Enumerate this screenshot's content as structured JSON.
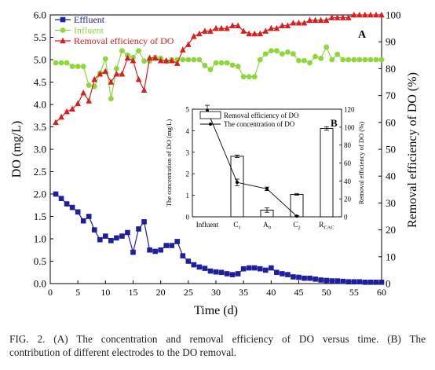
{
  "chart_data": [
    {
      "id": "A",
      "panel_label": "A",
      "type": "line",
      "xlabel": "Time (d)",
      "ylabel_left": "DO (mg/L)",
      "ylabel_right": "Removal efficiency of DO (%)",
      "xlim": [
        0,
        60
      ],
      "ylim_left": [
        0,
        6.0
      ],
      "ylim_right": [
        0,
        100
      ],
      "x_ticks": [
        0,
        5,
        10,
        15,
        20,
        25,
        30,
        35,
        40,
        45,
        50,
        55,
        60
      ],
      "y_ticks_left": [
        "0.0",
        "0.5",
        "1.0",
        "1.5",
        "2.0",
        "2.5",
        "3.0",
        "3.5",
        "4.0",
        "4.5",
        "5.0",
        "5.5",
        "6.0"
      ],
      "y_ticks_right": [
        0,
        10,
        20,
        30,
        40,
        50,
        60,
        70,
        80,
        90,
        100
      ],
      "legend_position": "top-left",
      "series": [
        {
          "name": "Effluent",
          "axis": "left",
          "marker": "square",
          "color": "#1f1f9e",
          "x": [
            1,
            2,
            3,
            4,
            5,
            6,
            7,
            8,
            9,
            10,
            11,
            12,
            13,
            14,
            15,
            16,
            17,
            18,
            19,
            20,
            21,
            22,
            23,
            24,
            25,
            26,
            27,
            28,
            29,
            30,
            31,
            32,
            33,
            34,
            35,
            36,
            37,
            38,
            39,
            40,
            41,
            42,
            43,
            44,
            45,
            46,
            47,
            48,
            49,
            50,
            51,
            52,
            53,
            54,
            55,
            56,
            57,
            58,
            59,
            60
          ],
          "y": [
            2.0,
            1.9,
            1.78,
            1.7,
            1.6,
            1.4,
            1.5,
            1.2,
            0.98,
            1.06,
            0.96,
            1.02,
            1.06,
            1.14,
            0.7,
            1.22,
            1.38,
            0.75,
            0.72,
            0.75,
            0.85,
            0.85,
            0.94,
            0.62,
            0.5,
            0.42,
            0.37,
            0.34,
            0.28,
            0.26,
            0.25,
            0.22,
            0.2,
            0.22,
            0.33,
            0.35,
            0.35,
            0.33,
            0.3,
            0.35,
            0.25,
            0.22,
            0.2,
            0.15,
            0.14,
            0.12,
            0.12,
            0.1,
            0.08,
            0.07,
            0.06,
            0.06,
            0.05,
            0.04,
            0.04,
            0.04,
            0.03,
            0.03,
            0.03,
            0.03
          ]
        },
        {
          "name": "Influent",
          "axis": "left",
          "marker": "circle",
          "color": "#8ed63a",
          "x": [
            1,
            2,
            3,
            4,
            5,
            6,
            7,
            8,
            9,
            10,
            11,
            12,
            13,
            14,
            15,
            16,
            17,
            18,
            19,
            20,
            21,
            22,
            23,
            24,
            25,
            26,
            27,
            28,
            29,
            30,
            31,
            32,
            33,
            34,
            35,
            36,
            37,
            38,
            39,
            40,
            41,
            42,
            43,
            44,
            45,
            46,
            47,
            48,
            49,
            50,
            51,
            52,
            53,
            54,
            55,
            56,
            57,
            58,
            59,
            60
          ],
          "y": [
            4.93,
            4.93,
            4.93,
            4.85,
            4.85,
            4.85,
            4.43,
            4.4,
            4.7,
            5.02,
            4.13,
            4.8,
            5.2,
            5.1,
            5.05,
            5.2,
            4.97,
            4.97,
            5.05,
            5.03,
            4.96,
            5.0,
            5.0,
            5.0,
            5.0,
            5.0,
            5.0,
            4.87,
            4.78,
            4.93,
            4.93,
            4.93,
            4.88,
            4.85,
            4.62,
            4.62,
            4.62,
            5.0,
            5.13,
            5.2,
            5.2,
            5.13,
            5.17,
            5.13,
            4.98,
            4.98,
            4.93,
            5.07,
            5.03,
            5.28,
            5.0,
            5.12,
            5.0,
            5.0,
            5.0,
            5.0,
            5.0,
            5.0,
            5.0,
            5.0
          ]
        },
        {
          "name": "Removal efficiency of DO",
          "axis": "right",
          "marker": "triangle",
          "color": "#d62020",
          "x": [
            1,
            2,
            3,
            4,
            5,
            6,
            7,
            8,
            9,
            10,
            11,
            12,
            13,
            14,
            15,
            16,
            17,
            18,
            19,
            20,
            21,
            22,
            23,
            24,
            25,
            26,
            27,
            28,
            29,
            30,
            31,
            32,
            33,
            34,
            35,
            36,
            37,
            38,
            39,
            40,
            41,
            42,
            43,
            44,
            45,
            46,
            47,
            48,
            49,
            50,
            51,
            52,
            53,
            54,
            55,
            56,
            57,
            58,
            59,
            60
          ],
          "y": [
            60,
            62,
            64,
            65,
            67,
            71,
            68,
            76,
            78,
            79,
            75,
            78,
            78,
            84,
            83,
            76,
            72,
            84,
            84,
            83,
            83,
            83,
            82,
            87,
            89,
            92,
            93,
            94,
            94,
            95,
            95,
            95,
            96,
            96,
            94,
            93,
            93,
            93,
            94,
            95,
            95,
            96,
            96,
            97,
            97,
            97,
            98,
            98,
            98,
            98,
            99,
            99,
            99,
            99,
            100,
            100,
            100,
            100,
            100,
            100
          ]
        }
      ]
    },
    {
      "id": "B",
      "panel_label": "B",
      "type": "bar",
      "ylabel_left": "The concentration of DO (mg/L)",
      "ylabel_right": "Removal efficiency of DO (%)",
      "ylim_left": [
        0,
        5
      ],
      "ylim_right": [
        0,
        120
      ],
      "y_ticks_left": [
        0,
        1,
        2,
        3,
        4,
        5
      ],
      "y_ticks_right": [
        0,
        20,
        40,
        60,
        80,
        100,
        120
      ],
      "categories": [
        "Influent",
        "C1",
        "A0",
        "C2",
        "RCAC"
      ],
      "category_labels": [
        {
          "main": "Influent",
          "sub": ""
        },
        {
          "main": "C",
          "sub": "1"
        },
        {
          "main": "A",
          "sub": "0"
        },
        {
          "main": "C",
          "sub": "2"
        },
        {
          "main": "R",
          "sub": "CAC"
        }
      ],
      "legend_position": "top-right",
      "series": [
        {
          "name": "Removal efficiency of DO",
          "axis": "right",
          "style": "bar",
          "values": [
            null,
            67.5,
            7.5,
            25,
            98.5
          ],
          "errors": [
            null,
            1.4,
            2.4,
            1.0,
            2.0
          ]
        },
        {
          "name": "The concentration of DO",
          "axis": "left",
          "style": "line",
          "values": [
            4.93,
            1.6,
            1.3,
            0.03,
            null
          ],
          "errors": [
            0.25,
            0.15,
            0.08,
            0.02,
            null
          ]
        }
      ]
    }
  ],
  "caption": {
    "line1": "FIG. 2. (A) The concentration and removal efficiency of DO versus time. (B) The",
    "line2": "contribution of different electrodes to the DO removal."
  }
}
